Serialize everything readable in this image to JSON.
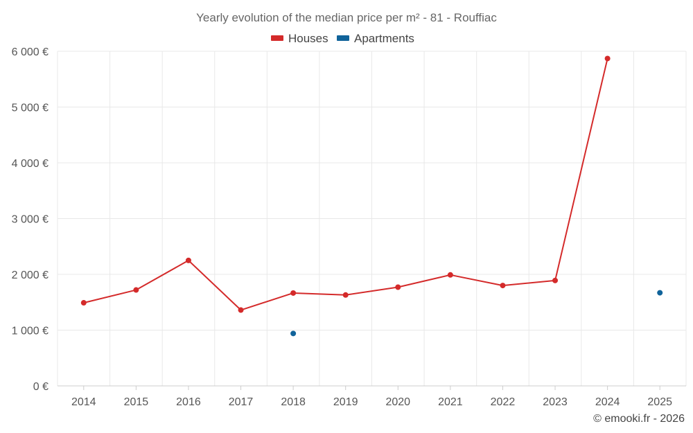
{
  "chart_data": {
    "type": "line",
    "title": "Yearly evolution of the median price per m² - 81 - Rouffiac",
    "categories": [
      "2014",
      "2015",
      "2016",
      "2017",
      "2018",
      "2019",
      "2020",
      "2021",
      "2022",
      "2023",
      "2024",
      "2025"
    ],
    "ylim": [
      0,
      6000
    ],
    "yticks": [
      0,
      1000,
      2000,
      3000,
      4000,
      5000,
      6000
    ],
    "ytick_labels": [
      "0 €",
      "1 000 €",
      "2 000 €",
      "3 000 €",
      "4 000 €",
      "5 000 €",
      "6 000 €"
    ],
    "grid": true,
    "legend_position": "top-center",
    "series": [
      {
        "name": "Houses",
        "color": "#d42a2a",
        "values": [
          1490,
          1720,
          2250,
          1360,
          1665,
          1630,
          1770,
          1990,
          1800,
          1890,
          5870,
          null
        ]
      },
      {
        "name": "Apartments",
        "color": "#10639a",
        "values": [
          null,
          null,
          null,
          null,
          940,
          null,
          null,
          null,
          null,
          null,
          null,
          1670
        ]
      }
    ],
    "credit": "© emooki.fr - 2026"
  }
}
